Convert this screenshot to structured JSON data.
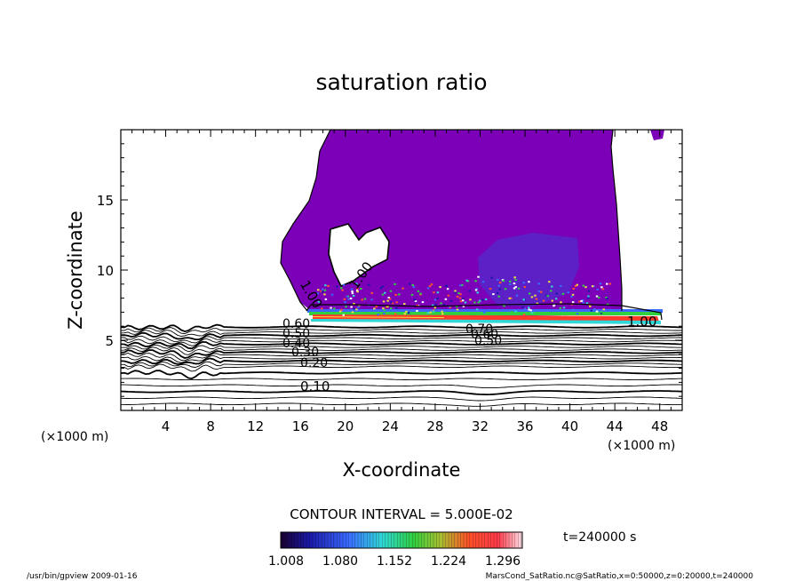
{
  "chart_data": {
    "type": "contour",
    "title": "saturation ratio",
    "xlabel": "X-coordinate",
    "ylabel": "Z-coordinate",
    "x_unit": "(×1000 m)",
    "y_unit": "(×1000 m)",
    "xlim": [
      0,
      50
    ],
    "ylim": [
      0,
      20
    ],
    "x_ticks": [
      "4",
      "8",
      "12",
      "16",
      "20",
      "24",
      "28",
      "32",
      "36",
      "40",
      "44",
      "48"
    ],
    "y_ticks": [
      "5",
      "10",
      "15"
    ],
    "contour_interval_text": "CONTOUR INTERVAL = 5.000E-02",
    "contour_labels": [
      "1.00",
      "1.00",
      "1.00",
      "0.60",
      "0.50",
      "0.40",
      "0.30",
      "0.20",
      "0.70",
      "0.60",
      "0.50",
      "0.10"
    ],
    "colorbar_ticks": [
      "1.008",
      "1.080",
      "1.152",
      "1.224",
      "1.296"
    ],
    "colorbar_range": [
      1.008,
      1.296
    ],
    "time_label": "t=240000 s",
    "grid": false,
    "colors": {
      "fill_main": "#7b00b8",
      "fill_dark": "#5a22c8",
      "high": "#ff3a2a",
      "mid": "#2ed84a"
    }
  },
  "footer": {
    "left": "/usr/bin/gpview  2009-01-16",
    "right": "MarsCond_SatRatio.nc@SatRatio,x=0:50000,z=0:20000,t=240000"
  }
}
